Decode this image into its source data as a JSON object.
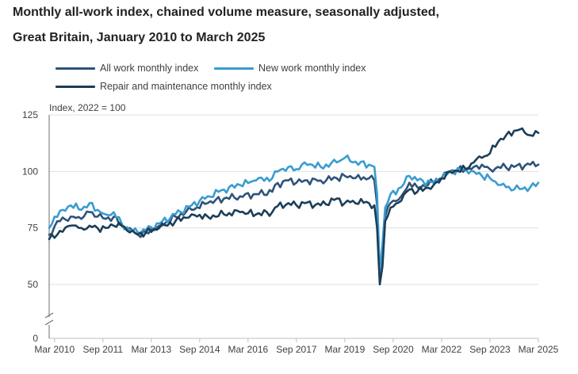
{
  "title_line1": "Monthly all-work index, chained volume measure, seasonally adjusted,",
  "title_line2": "Great Britain, January 2010 to March 2025",
  "chart_data": {
    "type": "line",
    "ylabel": "Index, 2022 = 100",
    "yticks": [
      0,
      50,
      75,
      100,
      125
    ],
    "ylim": [
      0,
      125
    ],
    "axis_break": true,
    "grid": true,
    "legend_position": "top-left",
    "x_start": "2010-01",
    "x_end": "2025-03",
    "xtick_labels": [
      "Mar 2010",
      "Sep 2011",
      "Mar 2013",
      "Sep 2014",
      "Mar 2016",
      "Sep 2017",
      "Mar 2019",
      "Sep 2020",
      "Mar 2022",
      "Sep 2023",
      "Mar 2025"
    ],
    "xtick_months": [
      "2010-03",
      "2011-09",
      "2013-03",
      "2014-09",
      "2016-03",
      "2017-09",
      "2019-03",
      "2020-09",
      "2022-03",
      "2023-09",
      "2025-03"
    ],
    "series": [
      {
        "name": "All work monthly index",
        "color": "#2e5379",
        "points": [
          [
            "2010-01",
            72
          ],
          [
            "2010-04",
            78
          ],
          [
            "2010-09",
            80
          ],
          [
            "2011-01",
            79
          ],
          [
            "2011-04",
            82
          ],
          [
            "2011-07",
            80
          ],
          [
            "2011-10",
            79
          ],
          [
            "2012-01",
            80
          ],
          [
            "2012-04",
            76
          ],
          [
            "2012-07",
            75
          ],
          [
            "2012-10",
            72
          ],
          [
            "2013-01",
            73
          ],
          [
            "2013-06",
            76
          ],
          [
            "2013-12",
            80
          ],
          [
            "2014-06",
            83
          ],
          [
            "2014-12",
            86
          ],
          [
            "2015-06",
            88
          ],
          [
            "2015-12",
            89
          ],
          [
            "2016-06",
            90
          ],
          [
            "2016-12",
            91
          ],
          [
            "2017-01",
            94
          ],
          [
            "2017-06",
            96
          ],
          [
            "2017-09",
            95
          ],
          [
            "2017-12",
            96
          ],
          [
            "2018-06",
            96
          ],
          [
            "2018-12",
            97
          ],
          [
            "2019-03",
            98
          ],
          [
            "2019-06",
            97
          ],
          [
            "2019-12",
            97
          ],
          [
            "2020-02",
            96
          ],
          [
            "2020-03",
            85
          ],
          [
            "2020-04",
            52
          ],
          [
            "2020-05",
            62
          ],
          [
            "2020-06",
            80
          ],
          [
            "2020-08",
            86
          ],
          [
            "2020-12",
            89
          ],
          [
            "2021-03",
            95
          ],
          [
            "2021-06",
            93
          ],
          [
            "2021-12",
            95
          ],
          [
            "2022-03",
            97
          ],
          [
            "2022-06",
            100
          ],
          [
            "2022-12",
            101
          ],
          [
            "2023-03",
            102
          ],
          [
            "2023-06",
            103
          ],
          [
            "2023-09",
            101
          ],
          [
            "2023-12",
            102
          ],
          [
            "2024-06",
            102
          ],
          [
            "2024-12",
            103
          ],
          [
            "2025-03",
            103
          ]
        ]
      },
      {
        "name": "New work monthly index",
        "color": "#3a9cd0",
        "points": [
          [
            "2010-01",
            75
          ],
          [
            "2010-03",
            80
          ],
          [
            "2010-06",
            83
          ],
          [
            "2010-09",
            85
          ],
          [
            "2011-01",
            83
          ],
          [
            "2011-04",
            86
          ],
          [
            "2011-07",
            83
          ],
          [
            "2011-10",
            81
          ],
          [
            "2012-01",
            82
          ],
          [
            "2012-04",
            77
          ],
          [
            "2012-07",
            74
          ],
          [
            "2012-10",
            73
          ],
          [
            "2013-01",
            74
          ],
          [
            "2013-06",
            77
          ],
          [
            "2013-12",
            81
          ],
          [
            "2014-06",
            85
          ],
          [
            "2014-12",
            89
          ],
          [
            "2015-06",
            92
          ],
          [
            "2015-12",
            94
          ],
          [
            "2016-06",
            96
          ],
          [
            "2016-12",
            97
          ],
          [
            "2017-01",
            100
          ],
          [
            "2017-06",
            102
          ],
          [
            "2017-09",
            101
          ],
          [
            "2017-12",
            104
          ],
          [
            "2018-06",
            102
          ],
          [
            "2018-12",
            104
          ],
          [
            "2019-03",
            106
          ],
          [
            "2019-06",
            104
          ],
          [
            "2019-12",
            103
          ],
          [
            "2020-02",
            102
          ],
          [
            "2020-03",
            90
          ],
          [
            "2020-04",
            55
          ],
          [
            "2020-05",
            68
          ],
          [
            "2020-06",
            84
          ],
          [
            "2020-08",
            90
          ],
          [
            "2020-12",
            93
          ],
          [
            "2021-03",
            98
          ],
          [
            "2021-06",
            96
          ],
          [
            "2021-12",
            95
          ],
          [
            "2022-03",
            97
          ],
          [
            "2022-06",
            100
          ],
          [
            "2022-12",
            101
          ],
          [
            "2023-03",
            100
          ],
          [
            "2023-06",
            98
          ],
          [
            "2023-09",
            97
          ],
          [
            "2023-12",
            94
          ],
          [
            "2024-03",
            93
          ],
          [
            "2024-06",
            92
          ],
          [
            "2024-12",
            93
          ],
          [
            "2025-03",
            95
          ]
        ]
      },
      {
        "name": "Repair and maintenance monthly index",
        "color": "#1c3e58",
        "points": [
          [
            "2010-01",
            70
          ],
          [
            "2010-04",
            72
          ],
          [
            "2010-09",
            76
          ],
          [
            "2011-01",
            75
          ],
          [
            "2011-04",
            76
          ],
          [
            "2011-07",
            75
          ],
          [
            "2011-10",
            75
          ],
          [
            "2012-01",
            76
          ],
          [
            "2012-04",
            76
          ],
          [
            "2012-07",
            73
          ],
          [
            "2012-10",
            72
          ],
          [
            "2013-01",
            73
          ],
          [
            "2013-06",
            75
          ],
          [
            "2013-12",
            78
          ],
          [
            "2014-06",
            81
          ],
          [
            "2014-12",
            80
          ],
          [
            "2015-06",
            81
          ],
          [
            "2015-12",
            82
          ],
          [
            "2016-06",
            81
          ],
          [
            "2016-12",
            82
          ],
          [
            "2017-01",
            84
          ],
          [
            "2017-06",
            86
          ],
          [
            "2017-09",
            85
          ],
          [
            "2017-12",
            86
          ],
          [
            "2018-06",
            85
          ],
          [
            "2018-12",
            88
          ],
          [
            "2019-03",
            86
          ],
          [
            "2019-06",
            87
          ],
          [
            "2019-12",
            86
          ],
          [
            "2020-02",
            85
          ],
          [
            "2020-03",
            75
          ],
          [
            "2020-04",
            50
          ],
          [
            "2020-05",
            58
          ],
          [
            "2020-06",
            78
          ],
          [
            "2020-08",
            84
          ],
          [
            "2020-12",
            87
          ],
          [
            "2021-03",
            92
          ],
          [
            "2021-06",
            91
          ],
          [
            "2021-12",
            94
          ],
          [
            "2022-03",
            97
          ],
          [
            "2022-06",
            100
          ],
          [
            "2022-12",
            101
          ],
          [
            "2023-03",
            104
          ],
          [
            "2023-06",
            106
          ],
          [
            "2023-09",
            108
          ],
          [
            "2023-12",
            113
          ],
          [
            "2024-03",
            116
          ],
          [
            "2024-06",
            118
          ],
          [
            "2024-09",
            119
          ],
          [
            "2024-12",
            116
          ],
          [
            "2025-03",
            117
          ]
        ]
      }
    ]
  }
}
